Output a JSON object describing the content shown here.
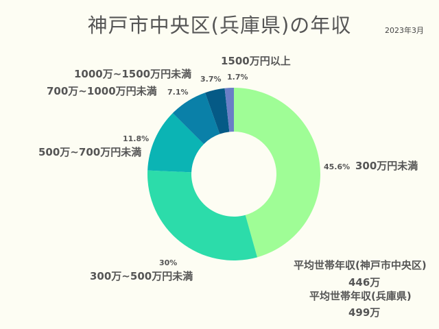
{
  "title": "神戸市中央区(兵庫県)の年収",
  "date": "2023年3月",
  "chart_data": {
    "type": "pie",
    "donut": true,
    "title": "神戸市中央区(兵庫県)の年収",
    "categories": [
      "300万円未満",
      "300万~500万円未満",
      "500万~700万円未満",
      "700万~1000万円未満",
      "1000万~1500万円未満",
      "1500万円以上"
    ],
    "values": [
      45.6,
      30,
      11.8,
      7.1,
      3.7,
      1.7
    ],
    "value_labels": [
      "45.6%",
      "30%",
      "11.8%",
      "7.1%",
      "3.7%",
      "1.7%"
    ],
    "colors": [
      "#9ffd96",
      "#2cdcaa",
      "#0bb4b4",
      "#0a80a8",
      "#055a86",
      "#6a7ec6"
    ]
  },
  "averages": {
    "local_label": "平均世帯年収(神戸市中央区)",
    "local_value": "446万",
    "pref_label": "平均世帯年収(兵庫県)",
    "pref_value": "499万"
  }
}
